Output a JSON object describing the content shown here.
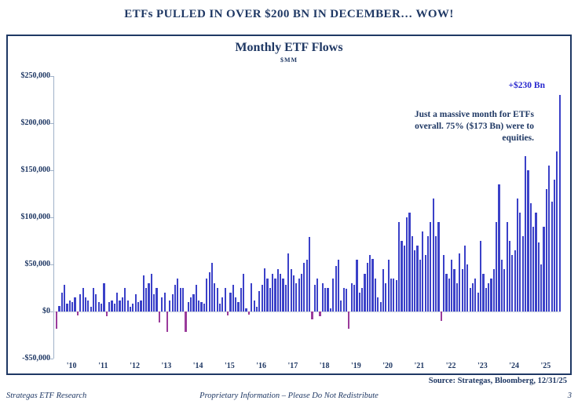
{
  "page": {
    "title": "ETFs PULLED IN OVER $200 BN IN DECEMBER… WOW!"
  },
  "footer": {
    "left": "Strategas ETF Research",
    "center": "Proprietary Information – Please Do Not Redistribute",
    "page_number": "3",
    "source": "Source: Strategas, Bloomberg, 12/31/25"
  },
  "chart_data": {
    "type": "bar",
    "title": "Monthly ETF Flows",
    "subtitle": "$MM",
    "ylabel": "$MM",
    "ylim": [
      -50000,
      250000
    ],
    "ytick_values": [
      250000,
      200000,
      150000,
      100000,
      50000,
      0,
      -50000
    ],
    "ytick_labels": [
      "$250,000",
      "$200,000",
      "$150,000",
      "$100,000",
      "$50,000",
      "$0",
      "-$50,000"
    ],
    "x_year_labels": [
      "'10",
      "'11",
      "'12",
      "'13",
      "'14",
      "'15",
      "'16",
      "'17",
      "'18",
      "'19",
      "'20",
      "'21",
      "'22",
      "'23",
      "'24",
      "'25"
    ],
    "grid": false,
    "legend": false,
    "annotation_value": "+$230 Bn",
    "annotation_note": "Just a massive month for ETFs overall. 75% ($173 Bn) were to equities.",
    "bar_color": "#3B41C8",
    "negative_bar_color": "#9A3B9B",
    "start_year": 2010,
    "monthly_values_mm": [
      -18000,
      6000,
      20000,
      28000,
      8000,
      12000,
      10000,
      15000,
      -4000,
      18000,
      25000,
      15000,
      12000,
      5000,
      25000,
      18000,
      10000,
      8000,
      30000,
      -5000,
      10000,
      12000,
      8000,
      20000,
      12000,
      15000,
      25000,
      12000,
      5000,
      8000,
      18000,
      10000,
      12000,
      38000,
      25000,
      30000,
      40000,
      18000,
      25000,
      -12000,
      15000,
      20000,
      -22000,
      12000,
      18000,
      28000,
      35000,
      25000,
      25000,
      -22000,
      10000,
      15000,
      18000,
      28000,
      12000,
      10000,
      8000,
      35000,
      42000,
      52000,
      30000,
      25000,
      8000,
      15000,
      25000,
      -4000,
      20000,
      28000,
      15000,
      10000,
      25000,
      40000,
      3000,
      -3000,
      30000,
      12000,
      5000,
      22000,
      28000,
      46000,
      35000,
      25000,
      40000,
      35000,
      45000,
      40000,
      35000,
      28000,
      62000,
      45000,
      38000,
      30000,
      35000,
      40000,
      52000,
      55000,
      79000,
      -8000,
      28000,
      35000,
      -5000,
      30000,
      25000,
      25000,
      3000,
      35000,
      48000,
      55000,
      12000,
      25000,
      24000,
      -18000,
      30000,
      28000,
      55000,
      20000,
      25000,
      40000,
      52000,
      60000,
      56000,
      35000,
      15000,
      10000,
      45000,
      30000,
      55000,
      35000,
      35000,
      33000,
      95000,
      75000,
      70000,
      100000,
      105000,
      80000,
      65000,
      70000,
      55000,
      85000,
      60000,
      80000,
      95000,
      120000,
      80000,
      95000,
      -10000,
      60000,
      40000,
      35000,
      55000,
      45000,
      30000,
      62000,
      45000,
      70000,
      50000,
      25000,
      30000,
      35000,
      20000,
      75000,
      40000,
      25000,
      30000,
      35000,
      45000,
      95000,
      135000,
      55000,
      45000,
      95000,
      75000,
      60000,
      65000,
      120000,
      105000,
      80000,
      165000,
      150000,
      115000,
      90000,
      105000,
      73000,
      50000,
      90000,
      130000,
      155000,
      117000,
      140000,
      170000,
      230000
    ]
  }
}
